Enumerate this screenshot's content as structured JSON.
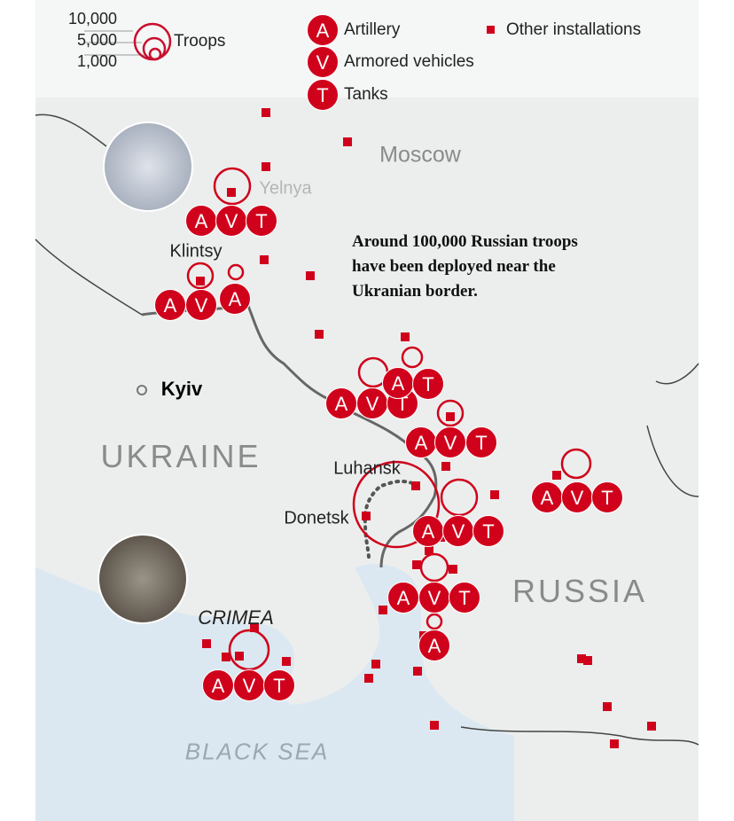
{
  "legend": {
    "troop_sizes": [
      "10,000",
      "5,000",
      "1,000"
    ],
    "troops_label": "Troops",
    "artillery": {
      "letter": "A",
      "label": "Artillery"
    },
    "armored": {
      "letter": "V",
      "label": "Armored vehicles"
    },
    "tanks": {
      "letter": "T",
      "label": "Tanks"
    },
    "other_label": "Other installations"
  },
  "colors": {
    "marker": "#d0021b",
    "border": "#555555",
    "sea": "#dbe8f1",
    "land": "#eceeee"
  },
  "places": {
    "moscow": "Moscow",
    "yelnya": "Yelnya",
    "klintsy": "Klintsy",
    "kyiv": "Kyiv",
    "ukraine": "UKRAINE",
    "luhansk": "Luhansk",
    "donetsk": "Donetsk",
    "russia": "RUSSIA",
    "crimea": "CRIMEA",
    "black_sea": "BLACK SEA"
  },
  "annotation": [
    "Around 100,000 Russian troops",
    "have been deployed near the",
    "Ukranian border."
  ],
  "equipment_groups": [
    [
      "A",
      "V",
      "T"
    ],
    [
      "A",
      "V",
      "A"
    ],
    [
      "A",
      "V",
      "T",
      "A",
      "T"
    ],
    [
      "A",
      "V",
      "T"
    ],
    [
      "A",
      "V",
      "T"
    ],
    [
      "A",
      "V",
      "T"
    ],
    [
      "A",
      "V",
      "T"
    ],
    [
      "A"
    ],
    [
      "A",
      "V",
      "T"
    ]
  ],
  "icons": {
    "photo_1": "satellite-photo-snow-base",
    "photo_2": "satellite-photo-crimea-base"
  }
}
